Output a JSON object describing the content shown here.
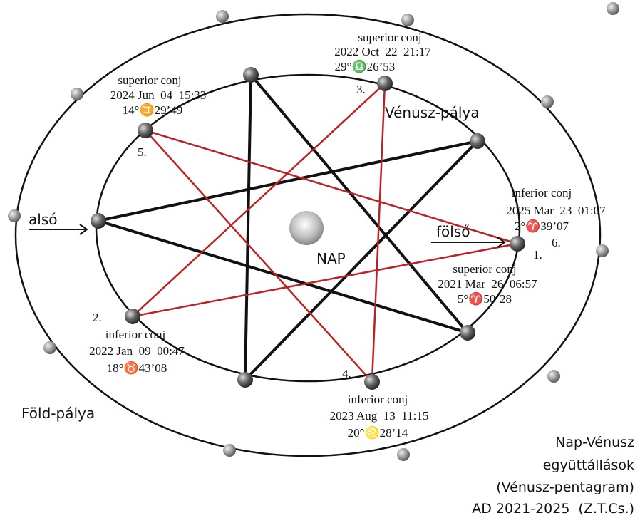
{
  "labels": {
    "venus_orbit": "Vénusz-pálya",
    "earth_orbit": "Föld-pálya",
    "lower": "alsó",
    "upper": "fölső",
    "sun": "NAP"
  },
  "conjunctions": [
    {
      "number": "3.",
      "kind": "superior conj",
      "date": "2022 Oct  22  21:17",
      "position": "29°♎26’53"
    },
    {
      "number": "5.",
      "kind": "superior conj",
      "date": "2024 Jun  04  15:33",
      "position": "14°♊29’49"
    },
    {
      "number": "1.",
      "kind": "superior conj",
      "date": "2021 Mar  26  06:57",
      "position": "5°♈50’28"
    },
    {
      "number": "6.",
      "kind": "inferior conj",
      "date": "2025 Mar  23  01:07",
      "position": "2°♈39’07"
    },
    {
      "number": "2.",
      "kind": "inferior conj",
      "date": "2022 Jan  09  00:47",
      "position": "18°♉43’08"
    },
    {
      "number": "4.",
      "kind": "inferior conj",
      "date": "2023 Aug  13  11:15",
      "position": "20°♌28’14"
    }
  ],
  "caption": [
    "Nap-Vénusz",
    "együttállások",
    "(Vénusz-pentagram)",
    "AD 2021-2025  (Z.T.Cs.)"
  ]
}
